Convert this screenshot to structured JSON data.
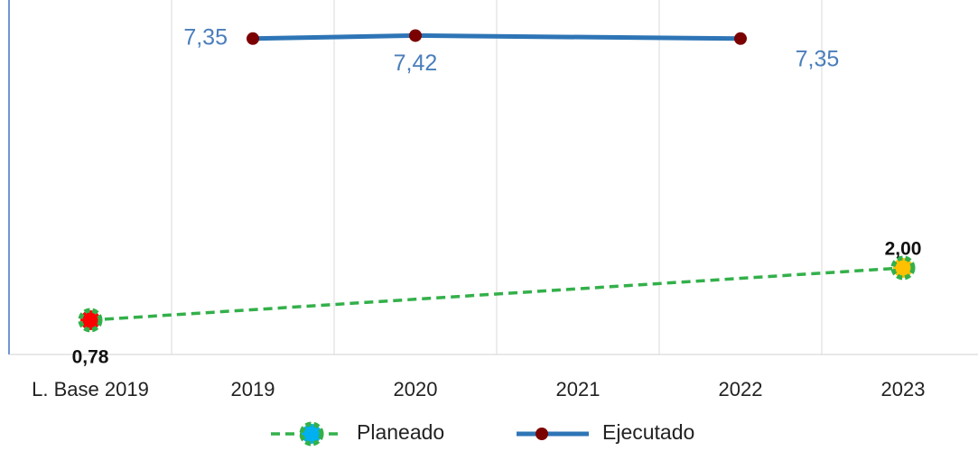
{
  "chart_data": {
    "type": "line",
    "categories": [
      "L. Base 2019",
      "2019",
      "2020",
      "2021",
      "2022",
      "2023"
    ],
    "series": [
      {
        "name": "Planeado",
        "color": "#33b04a",
        "dashed": true,
        "marker_color": "#00b0f0",
        "point_colors": [
          "#ff0000",
          null,
          null,
          null,
          null,
          "#ffc000"
        ],
        "values": [
          0.78,
          null,
          null,
          null,
          null,
          2.0
        ],
        "value_labels": [
          "0,78",
          null,
          null,
          null,
          null,
          "2,00"
        ]
      },
      {
        "name": "Ejecutado",
        "color": "#2e75b6",
        "dashed": false,
        "marker_color": "#7b0000",
        "values": [
          null,
          7.35,
          7.42,
          null,
          7.35,
          null
        ],
        "value_labels": [
          null,
          "7,35",
          "7,42",
          null,
          "7,35",
          null
        ]
      }
    ],
    "connect_gaps": true,
    "ylim": [
      0,
      8.25
    ],
    "legend": "bottom"
  }
}
